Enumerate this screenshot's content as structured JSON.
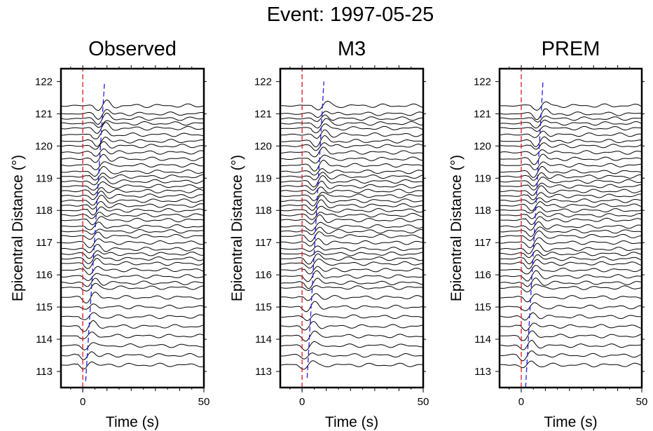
{
  "figure": {
    "title": "Event: 1997-05-25"
  },
  "colors": {
    "trace": "#000000",
    "zero_line": "#e0141e",
    "phase_line": "#1e1ee6",
    "frame": "#000000"
  },
  "chart_data": [
    {
      "type": "line",
      "title": "Observed",
      "xlabel": "Time (s)",
      "ylabel": "Epicentral Distance (°)",
      "xlim": [
        -9,
        50
      ],
      "ylim": [
        112.5,
        122.4
      ],
      "xticks": [
        0,
        50
      ],
      "yticks": [
        113,
        114,
        115,
        116,
        117,
        118,
        119,
        120,
        121,
        122
      ],
      "series": [
        {
          "name": "",
          "x": [
            0,
            0
          ],
          "y": [
            112.5,
            122.4
          ],
          "style": "dashed",
          "color": "#e0141e"
        },
        {
          "name": "",
          "x": [
            1.2,
            9
          ],
          "y": [
            112.7,
            122.0
          ],
          "style": "dashed",
          "color": "#1e1ee6"
        }
      ],
      "trace_distances": [
        113.2,
        113.5,
        113.8,
        114.1,
        114.4,
        114.7,
        115.0,
        115.3,
        115.6,
        115.75,
        115.95,
        116.15,
        116.35,
        116.5,
        116.65,
        116.8,
        117.0,
        117.2,
        117.35,
        117.5,
        117.7,
        117.85,
        118.0,
        118.15,
        118.3,
        118.45,
        118.6,
        118.75,
        118.9,
        119.05,
        119.2,
        119.4,
        119.6,
        119.8,
        120.0,
        120.15,
        120.35,
        120.55,
        120.7,
        120.85,
        121.0,
        121.25
      ]
    },
    {
      "type": "line",
      "title": "M3",
      "xlabel": "Time (s)",
      "ylabel": "Epicentral Distance (°)",
      "xlim": [
        -9,
        50
      ],
      "ylim": [
        112.5,
        122.4
      ],
      "xticks": [
        0,
        50
      ],
      "yticks": [
        113,
        114,
        115,
        116,
        117,
        118,
        119,
        120,
        121,
        122
      ],
      "series": [
        {
          "name": "",
          "x": [
            0,
            0
          ],
          "y": [
            112.5,
            122.4
          ],
          "style": "dashed",
          "color": "#e0141e"
        },
        {
          "name": "",
          "x": [
            2.1,
            9
          ],
          "y": [
            112.8,
            122.0
          ],
          "style": "dashed",
          "color": "#1e1ee6"
        }
      ],
      "trace_distances": [
        113.2,
        113.5,
        113.8,
        114.1,
        114.4,
        114.7,
        115.0,
        115.3,
        115.6,
        115.75,
        115.95,
        116.15,
        116.35,
        116.5,
        116.65,
        116.8,
        117.0,
        117.2,
        117.35,
        117.5,
        117.7,
        117.85,
        118.0,
        118.15,
        118.3,
        118.45,
        118.6,
        118.75,
        118.9,
        119.05,
        119.2,
        119.4,
        119.6,
        119.8,
        120.0,
        120.15,
        120.35,
        120.55,
        120.7,
        120.85,
        121.0,
        121.25
      ]
    },
    {
      "type": "line",
      "title": "PREM",
      "xlabel": "Time (s)",
      "ylabel": "Epicentral Distance (°)",
      "xlim": [
        -9,
        50
      ],
      "ylim": [
        112.5,
        122.4
      ],
      "xticks": [
        0,
        50
      ],
      "yticks": [
        113,
        114,
        115,
        116,
        117,
        118,
        119,
        120,
        121,
        122
      ],
      "series": [
        {
          "name": "",
          "x": [
            0,
            0
          ],
          "y": [
            112.5,
            122.4
          ],
          "style": "dashed",
          "color": "#e0141e"
        },
        {
          "name": "",
          "x": [
            1.8,
            9
          ],
          "y": [
            112.5,
            122.0
          ],
          "style": "dashed",
          "color": "#1e1ee6"
        }
      ],
      "trace_distances": [
        113.2,
        113.5,
        113.8,
        114.1,
        114.4,
        114.7,
        115.0,
        115.3,
        115.6,
        115.75,
        115.95,
        116.15,
        116.35,
        116.5,
        116.65,
        116.8,
        117.0,
        117.2,
        117.35,
        117.5,
        117.7,
        117.85,
        118.0,
        118.15,
        118.3,
        118.45,
        118.6,
        118.75,
        118.9,
        119.05,
        119.2,
        119.4,
        119.6,
        119.8,
        120.0,
        120.15,
        120.35,
        120.55,
        120.7,
        120.85,
        121.0,
        121.25
      ]
    }
  ]
}
